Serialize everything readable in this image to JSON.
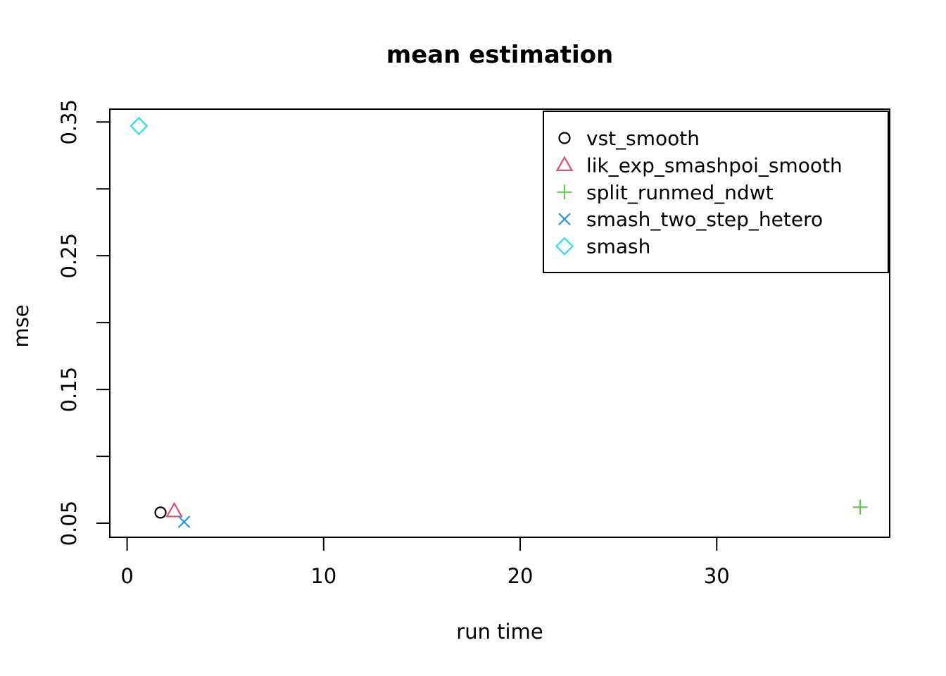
{
  "chart_data": {
    "type": "scatter",
    "title": "mean estimation",
    "xlabel": "run time",
    "ylabel": "mse",
    "xlim": [
      -0.88,
      38.8
    ],
    "ylim": [
      0.0395,
      0.3596
    ],
    "grid": false,
    "x_ticks": {
      "values": [
        0,
        10,
        20,
        30
      ],
      "labels": [
        "0",
        "10",
        "20",
        "30"
      ]
    },
    "y_ticks": {
      "values": [
        0.05,
        0.1,
        0.15,
        0.2,
        0.25,
        0.3,
        0.35
      ],
      "labels": [
        "0.05",
        "",
        "0.15",
        "",
        "0.25",
        "",
        "0.35"
      ]
    },
    "legend_position": "topright",
    "series": [
      {
        "name": "vst_smooth",
        "marker": "circle",
        "color": "#000000",
        "points": [
          {
            "x": 1.7,
            "y": 0.058
          }
        ]
      },
      {
        "name": "lik_exp_smashpoi_smooth",
        "marker": "triangle",
        "color": "#DF536B",
        "points": [
          {
            "x": 2.4,
            "y": 0.059
          }
        ]
      },
      {
        "name": "split_runmed_ndwt",
        "marker": "plus",
        "color": "#61D04F",
        "points": [
          {
            "x": 37.3,
            "y": 0.062
          }
        ]
      },
      {
        "name": "smash_two_step_hetero",
        "marker": "x",
        "color": "#2297E6",
        "points": [
          {
            "x": 2.9,
            "y": 0.051
          }
        ]
      },
      {
        "name": "smash",
        "marker": "diamond",
        "color": "#28E2E5",
        "points": [
          {
            "x": 0.6,
            "y": 0.347
          }
        ]
      }
    ]
  }
}
